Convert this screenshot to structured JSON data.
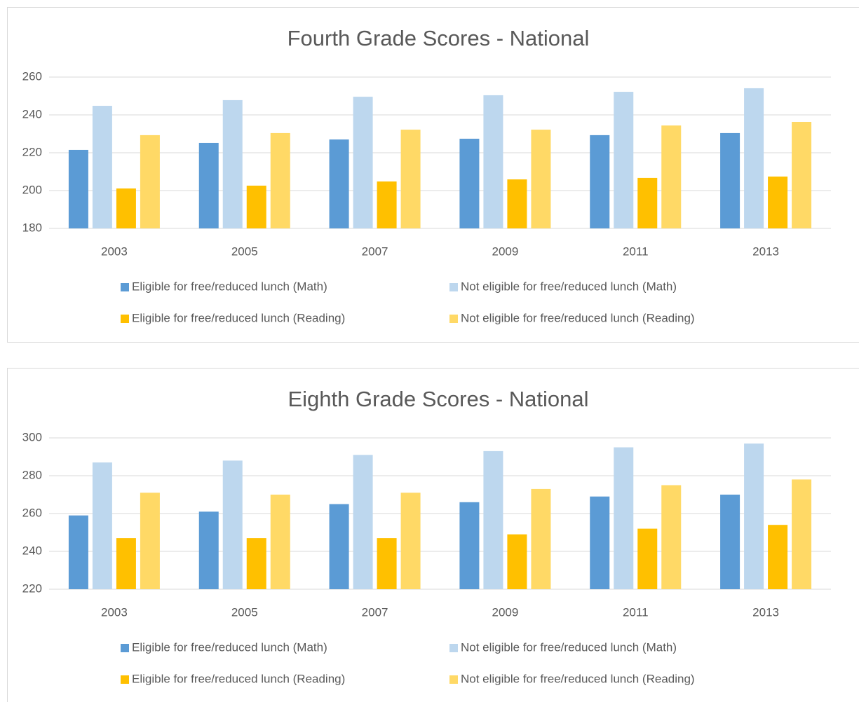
{
  "chart_data": [
    {
      "type": "bar",
      "title": "Fourth Grade Scores - National",
      "categories": [
        "2003",
        "2005",
        "2007",
        "2009",
        "2011",
        "2013"
      ],
      "series": [
        {
          "name": "Eligible for free/reduced lunch (Math)",
          "color": "#5b9bd5",
          "values": [
            221.5,
            225.2,
            227,
            227.4,
            229.3,
            230.4
          ]
        },
        {
          "name": "Not eligible for free/reduced lunch (Math)",
          "color": "#bdd7ee",
          "values": [
            244.8,
            247.8,
            249.6,
            250.4,
            252.2,
            254.1
          ]
        },
        {
          "name": "Eligible for free/reduced lunch (Reading)",
          "color": "#ffc000",
          "values": [
            201.1,
            202.6,
            204.8,
            205.9,
            206.7,
            207.4
          ]
        },
        {
          "name": "Not eligible for free/reduced lunch (Reading)",
          "color": "#ffd966",
          "values": [
            229.3,
            230.4,
            232.2,
            232.2,
            234.4,
            236.3
          ]
        }
      ],
      "ylim": [
        180,
        260
      ],
      "yticks": [
        180,
        200,
        220,
        240,
        260
      ],
      "grid": true,
      "legend": "bottom"
    },
    {
      "type": "bar",
      "title": "Eighth Grade Scores - National",
      "categories": [
        "2003",
        "2005",
        "2007",
        "2009",
        "2011",
        "2013"
      ],
      "series": [
        {
          "name": "Eligible for free/reduced lunch (Math)",
          "color": "#5b9bd5",
          "values": [
            259,
            261,
            265,
            266,
            269,
            270
          ]
        },
        {
          "name": "Not eligible for free/reduced lunch (Math)",
          "color": "#bdd7ee",
          "values": [
            287,
            288,
            291,
            293,
            295,
            297
          ]
        },
        {
          "name": "Eligible for free/reduced lunch (Reading)",
          "color": "#ffc000",
          "values": [
            247,
            247,
            247,
            249,
            252,
            254
          ]
        },
        {
          "name": "Not eligible for free/reduced lunch (Reading)",
          "color": "#ffd966",
          "values": [
            271,
            270,
            271,
            273,
            275,
            278
          ]
        }
      ],
      "ylim": [
        220,
        300
      ],
      "yticks": [
        220,
        240,
        260,
        280,
        300
      ],
      "grid": true,
      "legend": "bottom"
    }
  ]
}
